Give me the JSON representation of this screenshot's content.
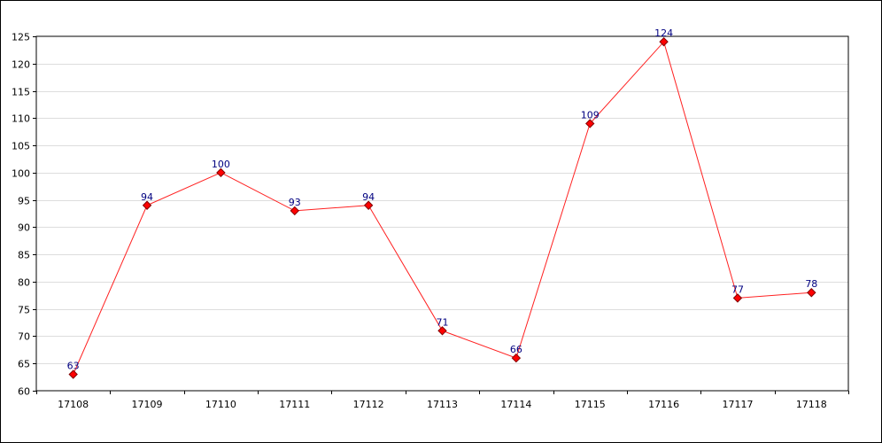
{
  "chart_data": {
    "type": "line",
    "title": "",
    "xlabel": "",
    "ylabel": "",
    "categories": [
      "17108",
      "17109",
      "17110",
      "17111",
      "17112",
      "17113",
      "17114",
      "17115",
      "17116",
      "17117",
      "17118"
    ],
    "series": [
      {
        "values": [
          63,
          94,
          100,
          93,
          94,
          71,
          66,
          109,
          124,
          77,
          78
        ]
      }
    ],
    "ylim": [
      60,
      125
    ],
    "ytick_step": 5,
    "grid": "horizontal",
    "show_data_labels": true,
    "colors": {
      "line": "#ff2020",
      "marker_fill": "#ff0000",
      "marker_stroke": "#800000",
      "data_label": "#000080",
      "grid": "#dddddd",
      "axis": "#000000"
    }
  }
}
